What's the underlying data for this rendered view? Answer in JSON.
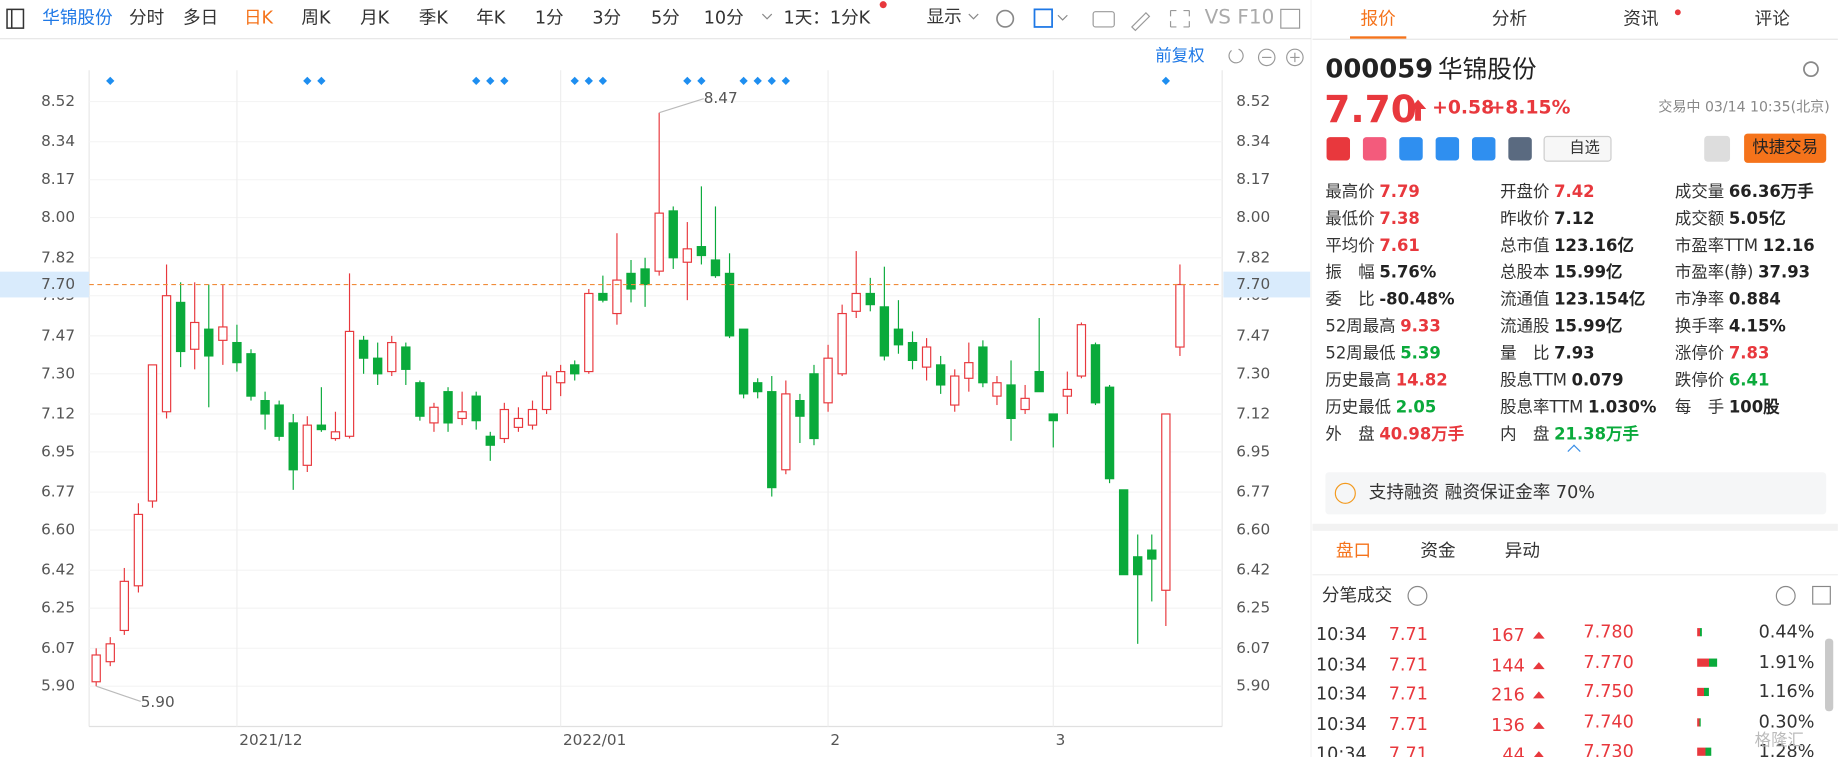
{
  "toolbar": {
    "stock": "华锦股份",
    "periods": [
      "分时",
      "多日",
      "日K",
      "周K",
      "月K",
      "季K",
      "年K",
      "1分",
      "3分",
      "5分",
      "10分"
    ],
    "selected": 2,
    "interval": "1天：1分K",
    "display": "显示",
    "compare": "VS",
    "f10": "F10",
    "adjust": "前复权"
  },
  "chart_data": {
    "type": "candlestick",
    "categories": [
      null,
      null,
      null,
      null,
      null,
      null,
      null,
      null,
      null,
      null,
      "2021/12",
      null,
      null,
      null,
      null,
      null,
      null,
      null,
      null,
      null,
      null,
      null,
      null,
      null,
      null,
      null,
      null,
      null,
      null,
      null,
      null,
      null,
      null,
      "2022/01",
      null,
      null,
      null,
      null,
      null,
      null,
      null,
      null,
      null,
      null,
      null,
      null,
      null,
      null,
      null,
      null,
      null,
      null,
      "2",
      null,
      null,
      null,
      null,
      null,
      null,
      null,
      null,
      null,
      null,
      null,
      null,
      null,
      null,
      null,
      "3",
      null,
      null,
      null,
      null,
      null,
      null,
      null,
      null,
      null
    ],
    "open": [
      5.92,
      6.01,
      6.15,
      6.35,
      6.73,
      7.13,
      7.62,
      7.41,
      7.5,
      7.45,
      7.44,
      7.39,
      7.18,
      7.16,
      7.08,
      6.89,
      7.07,
      7.01,
      7.02,
      7.45,
      7.37,
      7.31,
      7.42,
      7.26,
      7.08,
      7.22,
      7.1,
      7.2,
      7.02,
      7.01,
      7.06,
      7.07,
      7.14,
      7.26,
      7.34,
      7.31,
      7.66,
      7.57,
      7.75,
      7.77,
      7.76,
      8.03,
      7.8,
      7.87,
      7.81,
      7.75,
      7.5,
      7.26,
      7.22,
      6.87,
      7.18,
      7.3,
      7.17,
      7.3,
      7.58,
      7.66,
      7.6,
      7.5,
      7.44,
      7.33,
      7.34,
      7.16,
      7.28,
      7.42,
      7.2,
      7.25,
      7.14,
      7.31,
      7.12,
      7.2,
      7.29,
      7.43,
      7.24,
      6.78,
      6.48,
      6.51,
      6.33,
      7.42
    ],
    "high": [
      6.07,
      6.12,
      6.43,
      6.72,
      7.34,
      7.79,
      7.71,
      7.71,
      7.7,
      7.7,
      7.52,
      7.41,
      7.22,
      7.18,
      7.12,
      7.11,
      7.24,
      7.13,
      7.75,
      7.47,
      7.44,
      7.47,
      7.44,
      7.27,
      7.17,
      7.24,
      7.22,
      7.22,
      7.04,
      7.17,
      7.15,
      7.18,
      7.31,
      7.34,
      7.36,
      7.68,
      7.74,
      7.93,
      7.81,
      7.82,
      8.47,
      8.05,
      7.98,
      8.14,
      8.05,
      7.84,
      7.5,
      7.28,
      7.29,
      7.27,
      7.21,
      7.34,
      7.43,
      7.61,
      7.85,
      7.73,
      7.78,
      7.63,
      7.49,
      7.46,
      7.38,
      7.32,
      7.44,
      7.45,
      7.29,
      7.36,
      7.25,
      7.55,
      7.12,
      7.31,
      7.53,
      7.44,
      7.25,
      6.78,
      6.58,
      6.58,
      7.12,
      7.79
    ],
    "low": [
      5.9,
      5.99,
      6.13,
      6.32,
      6.7,
      7.1,
      7.33,
      7.32,
      7.15,
      7.34,
      7.31,
      7.18,
      7.05,
      7.0,
      6.78,
      6.86,
      7.04,
      7.0,
      7.01,
      7.3,
      7.25,
      7.29,
      7.25,
      7.09,
      7.04,
      7.04,
      7.07,
      7.05,
      6.91,
      6.99,
      7.04,
      7.05,
      7.12,
      7.2,
      7.27,
      7.3,
      7.62,
      7.52,
      7.62,
      7.6,
      7.74,
      7.77,
      7.63,
      7.79,
      7.73,
      7.46,
      7.19,
      7.19,
      6.75,
      6.85,
      6.99,
      6.98,
      7.13,
      7.29,
      7.55,
      7.58,
      7.36,
      7.39,
      7.32,
      7.27,
      7.21,
      7.13,
      7.22,
      7.24,
      7.16,
      7.0,
      7.12,
      7.22,
      6.97,
      7.12,
      7.28,
      7.16,
      6.81,
      6.4,
      6.09,
      6.28,
      6.17,
      7.38
    ],
    "close": [
      6.04,
      6.09,
      6.37,
      6.67,
      7.34,
      7.65,
      7.4,
      7.53,
      7.38,
      7.51,
      7.35,
      7.2,
      7.12,
      7.02,
      6.87,
      7.07,
      7.05,
      7.04,
      7.49,
      7.37,
      7.3,
      7.44,
      7.32,
      7.11,
      7.15,
      7.08,
      7.13,
      7.09,
      6.98,
      7.14,
      7.1,
      7.14,
      7.29,
      7.31,
      7.3,
      7.66,
      7.63,
      7.72,
      7.68,
      7.7,
      8.02,
      7.82,
      7.86,
      7.83,
      7.74,
      7.47,
      7.21,
      7.22,
      6.79,
      7.21,
      7.11,
      7.01,
      7.37,
      7.57,
      7.66,
      7.61,
      7.38,
      7.43,
      7.36,
      7.42,
      7.25,
      7.29,
      7.35,
      7.26,
      7.26,
      7.1,
      7.19,
      7.22,
      7.09,
      7.23,
      7.52,
      7.17,
      6.83,
      6.4,
      6.4,
      6.47,
      7.12,
      7.7
    ],
    "up_color": "#e8383d",
    "down_color": "#0aaa3b",
    "ylim": [
      5.73,
      8.66
    ],
    "yticks": [
      {
        "value": 5.9,
        "label": "5.90"
      },
      6.07,
      6.25,
      6.42,
      {
        "value": 6.6,
        "label": "6.60"
      },
      6.77,
      6.95,
      7.12,
      {
        "value": 7.3,
        "label": "7.30"
      },
      7.47,
      7.65,
      7.82,
      {
        "value": 8.0,
        "label": "8.00"
      },
      8.17,
      8.34,
      8.52
    ],
    "grid": true,
    "last_price": {
      "value": 7.7,
      "label": "7.70"
    },
    "annotations": [
      {
        "index": 40,
        "value": 8.47,
        "label": "8.47"
      },
      {
        "index": 0,
        "value": 5.9,
        "label": "5.90"
      }
    ]
  },
  "panel": {
    "tabs": [
      "报价",
      "分析",
      "资讯",
      "评论"
    ],
    "selected_tab": 0,
    "code": "000059",
    "name": "华锦股份",
    "price": "7.70",
    "change": "+0.58",
    "change_pct": "+8.15%",
    "status": "交易中 03/14 10:35(北京)",
    "watch": "自选",
    "trade": "快捷交易",
    "stats": [
      [
        {
          "label": "最高价",
          "value": "7.79",
          "color": "#e8383d"
        },
        {
          "label": "开盘价",
          "value": "7.42",
          "color": "#e8383d"
        },
        {
          "label": "成交量",
          "value": "66.36万手",
          "color": "#222"
        }
      ],
      [
        {
          "label": "最低价",
          "value": "7.38",
          "color": "#e8383d"
        },
        {
          "label": "昨收价",
          "value": "7.12",
          "color": "#222"
        },
        {
          "label": "成交额",
          "value": "5.05亿",
          "color": "#222"
        }
      ],
      [
        {
          "label": "平均价",
          "value": "7.61",
          "color": "#e8383d"
        },
        {
          "label": "总市值",
          "value": "123.16亿",
          "color": "#222"
        },
        {
          "label": "市盈率TTM",
          "value": "12.16",
          "color": "#222"
        }
      ],
      [
        {
          "label": "振　幅",
          "value": "5.76%",
          "color": "#222"
        },
        {
          "label": "总股本",
          "value": "15.99亿",
          "color": "#222"
        },
        {
          "label": "市盈率(静)",
          "value": "37.93",
          "color": "#222"
        }
      ],
      [
        {
          "label": "委　比",
          "value": "-80.48%",
          "color": "#222"
        },
        {
          "label": "流通值",
          "value": "123.154亿",
          "color": "#222"
        },
        {
          "label": "市净率",
          "value": "0.884",
          "color": "#222"
        }
      ],
      [
        {
          "label": "52周最高",
          "value": "9.33",
          "color": "#e8383d"
        },
        {
          "label": "流通股",
          "value": "15.99亿",
          "color": "#222"
        },
        {
          "label": "换手率",
          "value": "4.15%",
          "color": "#222"
        }
      ],
      [
        {
          "label": "52周最低",
          "value": "5.39",
          "color": "#0aaa3b"
        },
        {
          "label": "量　比",
          "value": "7.93",
          "color": "#222"
        },
        {
          "label": "涨停价",
          "value": "7.83",
          "color": "#e8383d"
        }
      ],
      [
        {
          "label": "历史最高",
          "value": "14.82",
          "color": "#e8383d"
        },
        {
          "label": "股息TTM",
          "value": "0.079",
          "color": "#222"
        },
        {
          "label": "跌停价",
          "value": "6.41",
          "color": "#0aaa3b"
        }
      ],
      [
        {
          "label": "历史最低",
          "value": "2.05",
          "color": "#0aaa3b"
        },
        {
          "label": "股息率TTM",
          "value": "1.030%",
          "color": "#222"
        },
        {
          "label": "每　手",
          "value": "100股",
          "color": "#222"
        }
      ],
      [
        {
          "label": "外　盘",
          "value": "40.98万手",
          "color": "#e8383d"
        },
        {
          "label": "内　盘",
          "value": "21.38万手",
          "color": "#0aaa3b"
        }
      ]
    ],
    "margin": "支持融资 融资保证金率 70%",
    "subtabs": [
      "盘口",
      "资金",
      "异动"
    ],
    "selected_subtab": 0,
    "ticks_title": "分笔成交",
    "trades": [
      {
        "time": "10:34",
        "price": "7.71",
        "volume": "167"
      },
      {
        "time": "10:34",
        "price": "7.71",
        "volume": "144"
      },
      {
        "time": "10:34",
        "price": "7.71",
        "volume": "216"
      },
      {
        "time": "10:34",
        "price": "7.71",
        "volume": "136"
      },
      {
        "time": "10:34",
        "price": "7.71",
        "volume": "44"
      }
    ],
    "distribution": [
      {
        "price": "7.780",
        "pct": 0.44,
        "label": "0.44%"
      },
      {
        "price": "7.770",
        "pct": 1.91,
        "label": "1.91%"
      },
      {
        "price": "7.750",
        "pct": 1.16,
        "label": "1.16%"
      },
      {
        "price": "7.740",
        "pct": 0.3,
        "label": "0.30%"
      },
      {
        "price": "7.730",
        "pct": 1.28,
        "label": "1.28%"
      }
    ]
  },
  "watermark": "格隆汇"
}
